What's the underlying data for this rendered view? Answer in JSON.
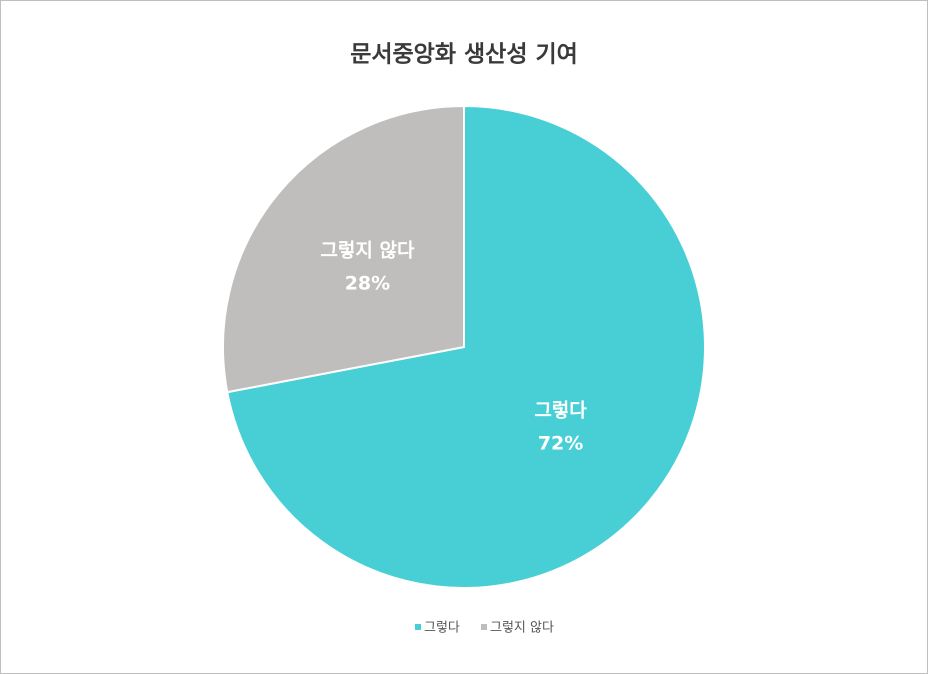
{
  "chart_data": {
    "type": "pie",
    "title": "문서중앙화 생산성 기여",
    "categories": [
      "그렇다",
      "그렇지 않다"
    ],
    "values": [
      72,
      28
    ],
    "value_labels": [
      "72%",
      "28%"
    ],
    "colors": [
      "#48cfd5",
      "#bfbebd"
    ],
    "legend": "bottom"
  }
}
